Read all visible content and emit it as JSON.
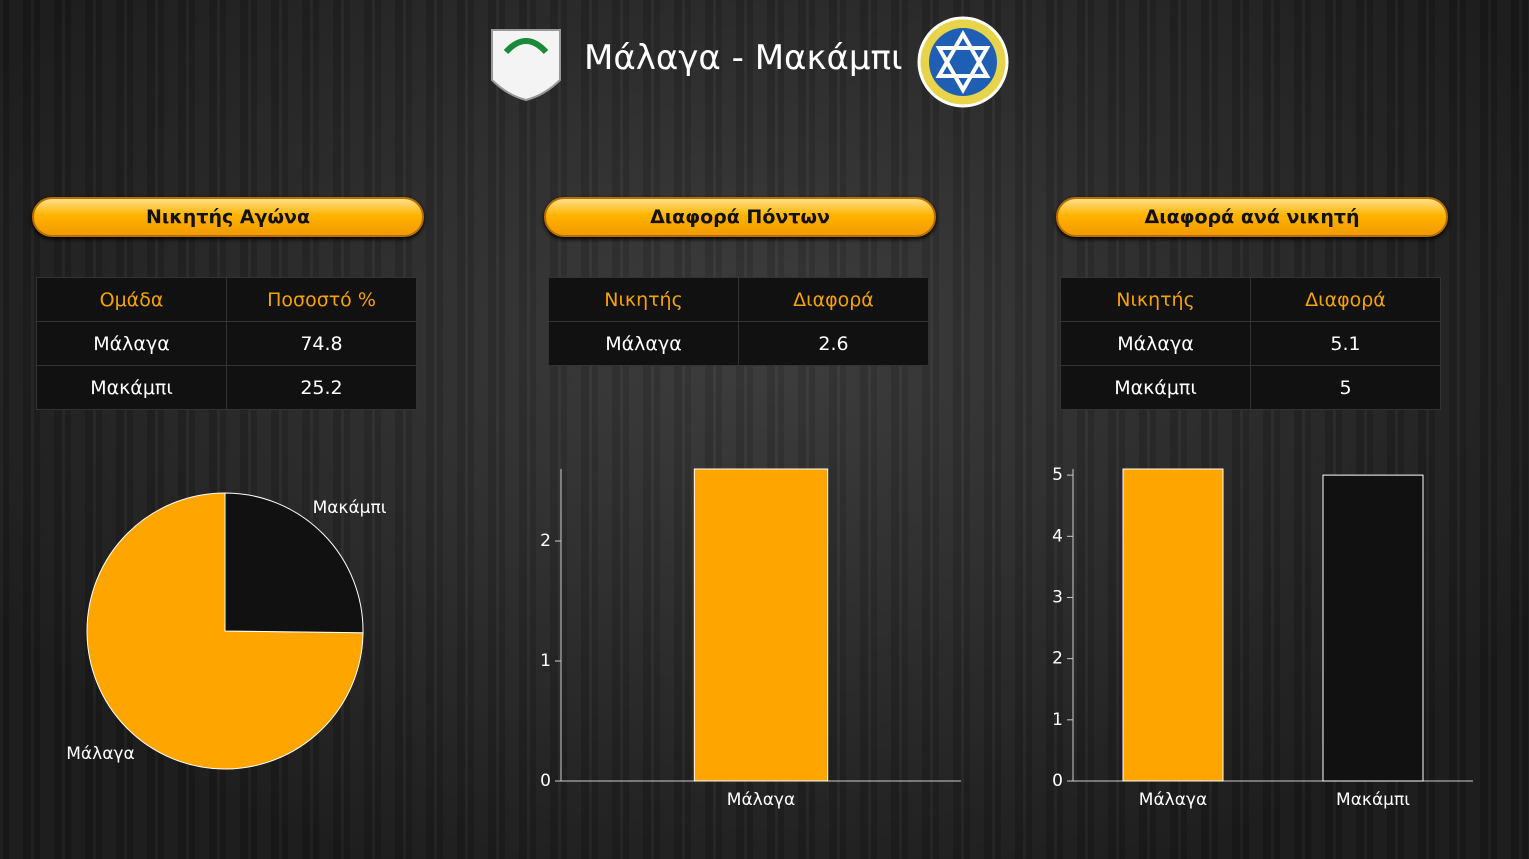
{
  "header": {
    "title": "Μάλαγα - Μακάμπι"
  },
  "panels": [
    {
      "title": "Νικητής Αγώνα",
      "table": {
        "columns": [
          "Ομάδα",
          "Ποσοστό %"
        ],
        "rows": [
          [
            "Μάλαγα",
            74.8
          ],
          [
            "Μακάμπι",
            25.2
          ]
        ]
      }
    },
    {
      "title": "Διαφορά Πόντων",
      "table": {
        "columns": [
          "Νικητής",
          "Διαφορά"
        ],
        "rows": [
          [
            "Μάλαγα",
            2.6
          ]
        ]
      }
    },
    {
      "title": "Διαφορά ανά νικητή",
      "table": {
        "columns": [
          "Νικητής",
          "Διαφορά"
        ],
        "rows": [
          [
            "Μάλαγα",
            5.1
          ],
          [
            "Μακάμπι",
            5
          ]
        ]
      }
    }
  ],
  "chart_data": [
    {
      "type": "pie",
      "categories": [
        "Μάλαγα",
        "Μακάμπι"
      ],
      "values": [
        74.8,
        25.2
      ],
      "colors": [
        "#ffa500",
        "#111111"
      ]
    },
    {
      "type": "bar",
      "categories": [
        "Μάλαγα"
      ],
      "values": [
        2.6
      ],
      "colors": [
        "#ffa500"
      ],
      "ylim": [
        0,
        2.6
      ],
      "yticks": [
        0,
        1,
        2
      ]
    },
    {
      "type": "bar",
      "categories": [
        "Μάλαγα",
        "Μακάμπι"
      ],
      "values": [
        5.1,
        5
      ],
      "colors": [
        "#ffa500",
        "#111111"
      ],
      "ylim": [
        0,
        5.1
      ],
      "yticks": [
        0,
        1,
        2,
        3,
        4,
        5
      ]
    }
  ]
}
